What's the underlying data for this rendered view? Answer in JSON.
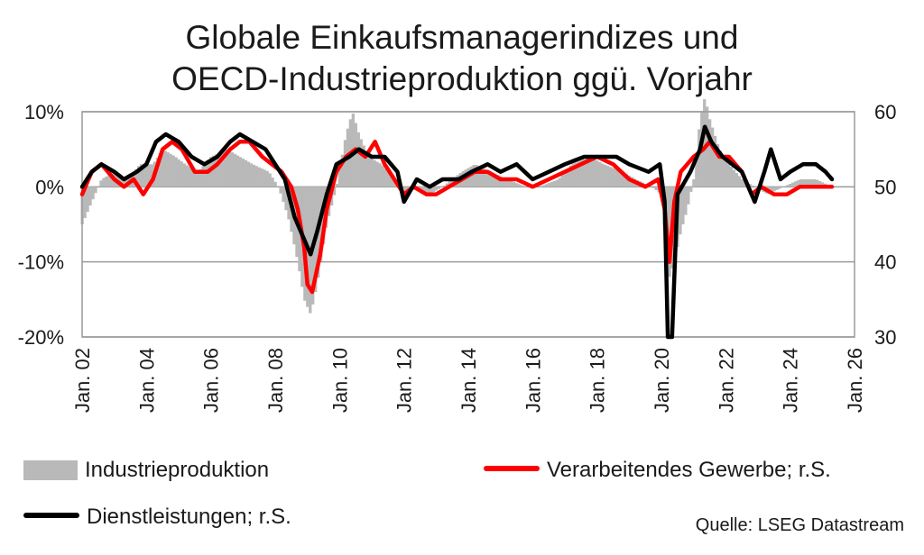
{
  "chart_data": {
    "type": "line",
    "title_lines": [
      "Globale Einkaufsmanagerindizes und",
      "OECD-Industrieproduktion ggü. Vorjahr"
    ],
    "x_ticks": [
      "Jan. 02",
      "Jan. 04",
      "Jan. 06",
      "Jan. 08",
      "Jan. 10",
      "Jan. 12",
      "Jan. 14",
      "Jan. 16",
      "Jan. 18",
      "Jan. 20",
      "Jan. 22",
      "Jan. 24",
      "Jan. 26"
    ],
    "xlim": [
      2002.0,
      2026.0
    ],
    "y_left": {
      "ticks": [
        "10%",
        "0%",
        "-10%",
        "-20%"
      ],
      "lim": [
        -20,
        10
      ],
      "unit": "%"
    },
    "y_right": {
      "ticks": [
        "60",
        "50",
        "40",
        "30"
      ],
      "lim": [
        30,
        60
      ]
    },
    "grid": "horizontal",
    "colors": {
      "bars": "#b9b9b9",
      "manufacturing": "#ff0000",
      "services": "#000000",
      "grid": "#9a9a9a"
    },
    "series": [
      {
        "name": "Industrieproduktion",
        "kind": "bar",
        "axis": "left",
        "points": [
          [
            2002.0,
            -5
          ],
          [
            2002.3,
            -2
          ],
          [
            2002.6,
            1
          ],
          [
            2003.0,
            2
          ],
          [
            2003.4,
            1
          ],
          [
            2003.8,
            3
          ],
          [
            2004.2,
            3
          ],
          [
            2004.5,
            5
          ],
          [
            2004.9,
            4
          ],
          [
            2005.2,
            3
          ],
          [
            2005.6,
            2
          ],
          [
            2006.0,
            4
          ],
          [
            2006.5,
            5
          ],
          [
            2006.9,
            4
          ],
          [
            2007.3,
            3
          ],
          [
            2007.8,
            2
          ],
          [
            2008.1,
            0
          ],
          [
            2008.4,
            -4
          ],
          [
            2008.7,
            -10
          ],
          [
            2008.9,
            -15
          ],
          [
            2009.1,
            -17
          ],
          [
            2009.3,
            -13
          ],
          [
            2009.6,
            -5
          ],
          [
            2009.9,
            0
          ],
          [
            2010.2,
            7
          ],
          [
            2010.4,
            10
          ],
          [
            2010.6,
            7
          ],
          [
            2010.9,
            4
          ],
          [
            2011.3,
            3
          ],
          [
            2011.7,
            1
          ],
          [
            2012.0,
            -1
          ],
          [
            2012.4,
            0
          ],
          [
            2012.8,
            -1
          ],
          [
            2013.2,
            0
          ],
          [
            2013.8,
            2
          ],
          [
            2014.2,
            3
          ],
          [
            2014.7,
            2
          ],
          [
            2015.2,
            1
          ],
          [
            2015.8,
            0
          ],
          [
            2016.2,
            0
          ],
          [
            2016.8,
            1
          ],
          [
            2017.2,
            3
          ],
          [
            2017.8,
            4
          ],
          [
            2018.2,
            3
          ],
          [
            2018.8,
            2
          ],
          [
            2019.2,
            1
          ],
          [
            2019.7,
            0
          ],
          [
            2020.0,
            -1
          ],
          [
            2020.1,
            -6
          ],
          [
            2020.25,
            -12
          ],
          [
            2020.4,
            -10
          ],
          [
            2020.6,
            -6
          ],
          [
            2020.8,
            -3
          ],
          [
            2021.0,
            1
          ],
          [
            2021.2,
            9
          ],
          [
            2021.35,
            12
          ],
          [
            2021.5,
            9
          ],
          [
            2021.8,
            5
          ],
          [
            2022.1,
            3
          ],
          [
            2022.5,
            1
          ],
          [
            2022.9,
            0
          ],
          [
            2023.3,
            -1
          ],
          [
            2023.8,
            0
          ],
          [
            2024.3,
            1
          ],
          [
            2024.8,
            1
          ],
          [
            2025.3,
            0
          ]
        ]
      },
      {
        "name": "Verarbeitendes Gewerbe; r.S.",
        "kind": "line",
        "axis": "right",
        "points": [
          [
            2002.0,
            49
          ],
          [
            2002.3,
            52
          ],
          [
            2002.6,
            53
          ],
          [
            2003.0,
            51
          ],
          [
            2003.3,
            50
          ],
          [
            2003.6,
            51
          ],
          [
            2003.9,
            49
          ],
          [
            2004.2,
            51
          ],
          [
            2004.5,
            55
          ],
          [
            2004.8,
            56
          ],
          [
            2005.1,
            55
          ],
          [
            2005.5,
            52
          ],
          [
            2005.9,
            52
          ],
          [
            2006.2,
            53
          ],
          [
            2006.6,
            55
          ],
          [
            2006.9,
            56
          ],
          [
            2007.2,
            56
          ],
          [
            2007.6,
            54
          ],
          [
            2007.9,
            53
          ],
          [
            2008.2,
            52
          ],
          [
            2008.5,
            50
          ],
          [
            2008.7,
            47
          ],
          [
            2008.9,
            42
          ],
          [
            2009.0,
            37
          ],
          [
            2009.15,
            36
          ],
          [
            2009.4,
            41
          ],
          [
            2009.6,
            47
          ],
          [
            2009.9,
            52
          ],
          [
            2010.2,
            54
          ],
          [
            2010.5,
            55
          ],
          [
            2010.8,
            54
          ],
          [
            2011.1,
            56
          ],
          [
            2011.4,
            53
          ],
          [
            2011.7,
            51
          ],
          [
            2012.0,
            49
          ],
          [
            2012.3,
            50
          ],
          [
            2012.7,
            49
          ],
          [
            2013.0,
            49
          ],
          [
            2013.4,
            50
          ],
          [
            2013.8,
            51
          ],
          [
            2014.2,
            52
          ],
          [
            2014.6,
            52
          ],
          [
            2015.0,
            51
          ],
          [
            2015.5,
            51
          ],
          [
            2016.0,
            50
          ],
          [
            2016.5,
            51
          ],
          [
            2017.0,
            52
          ],
          [
            2017.5,
            53
          ],
          [
            2018.0,
            54
          ],
          [
            2018.5,
            53
          ],
          [
            2019.0,
            51
          ],
          [
            2019.5,
            50
          ],
          [
            2019.9,
            51
          ],
          [
            2020.1,
            47
          ],
          [
            2020.25,
            40
          ],
          [
            2020.4,
            48
          ],
          [
            2020.6,
            52
          ],
          [
            2021.0,
            54
          ],
          [
            2021.3,
            55
          ],
          [
            2021.5,
            56
          ],
          [
            2021.8,
            54
          ],
          [
            2022.1,
            54
          ],
          [
            2022.5,
            52
          ],
          [
            2022.8,
            49
          ],
          [
            2023.1,
            50
          ],
          [
            2023.5,
            49
          ],
          [
            2023.9,
            49
          ],
          [
            2024.3,
            50
          ],
          [
            2024.7,
            50
          ],
          [
            2025.0,
            50
          ],
          [
            2025.3,
            50
          ]
        ]
      },
      {
        "name": "Dienstleistungen; r.S.",
        "kind": "line",
        "axis": "right",
        "points": [
          [
            2002.0,
            50
          ],
          [
            2002.3,
            52
          ],
          [
            2002.6,
            53
          ],
          [
            2003.0,
            52
          ],
          [
            2003.3,
            51
          ],
          [
            2003.7,
            52
          ],
          [
            2004.0,
            53
          ],
          [
            2004.3,
            56
          ],
          [
            2004.6,
            57
          ],
          [
            2005.0,
            56
          ],
          [
            2005.4,
            54
          ],
          [
            2005.8,
            53
          ],
          [
            2006.2,
            54
          ],
          [
            2006.6,
            56
          ],
          [
            2006.9,
            57
          ],
          [
            2007.3,
            56
          ],
          [
            2007.7,
            55
          ],
          [
            2008.0,
            53
          ],
          [
            2008.3,
            51
          ],
          [
            2008.6,
            46
          ],
          [
            2008.9,
            43
          ],
          [
            2009.1,
            41
          ],
          [
            2009.3,
            44
          ],
          [
            2009.6,
            49
          ],
          [
            2009.9,
            53
          ],
          [
            2010.3,
            54
          ],
          [
            2010.6,
            55
          ],
          [
            2011.0,
            54
          ],
          [
            2011.4,
            54
          ],
          [
            2011.8,
            52
          ],
          [
            2012.0,
            48
          ],
          [
            2012.4,
            51
          ],
          [
            2012.8,
            50
          ],
          [
            2013.2,
            51
          ],
          [
            2013.7,
            51
          ],
          [
            2014.1,
            52
          ],
          [
            2014.6,
            53
          ],
          [
            2015.0,
            52
          ],
          [
            2015.5,
            53
          ],
          [
            2016.0,
            51
          ],
          [
            2016.5,
            52
          ],
          [
            2017.0,
            53
          ],
          [
            2017.6,
            54
          ],
          [
            2018.1,
            54
          ],
          [
            2018.6,
            54
          ],
          [
            2019.0,
            53
          ],
          [
            2019.6,
            52
          ],
          [
            2019.95,
            53
          ],
          [
            2020.1,
            48
          ],
          [
            2020.2,
            30
          ],
          [
            2020.33,
            30
          ],
          [
            2020.5,
            49
          ],
          [
            2020.9,
            52
          ],
          [
            2021.2,
            55
          ],
          [
            2021.35,
            58
          ],
          [
            2021.55,
            56
          ],
          [
            2021.9,
            54
          ],
          [
            2022.2,
            53
          ],
          [
            2022.5,
            52
          ],
          [
            2022.9,
            48
          ],
          [
            2023.2,
            52
          ],
          [
            2023.4,
            55
          ],
          [
            2023.7,
            51
          ],
          [
            2024.0,
            52
          ],
          [
            2024.4,
            53
          ],
          [
            2024.8,
            53
          ],
          [
            2025.1,
            52
          ],
          [
            2025.3,
            51
          ]
        ]
      }
    ]
  },
  "legend": {
    "industry": "Industrieproduktion",
    "manufacturing": "Verarbeitendes Gewerbe; r.S.",
    "services": "Dienstleistungen; r.S."
  },
  "source": "Quelle: LSEG Datastream"
}
